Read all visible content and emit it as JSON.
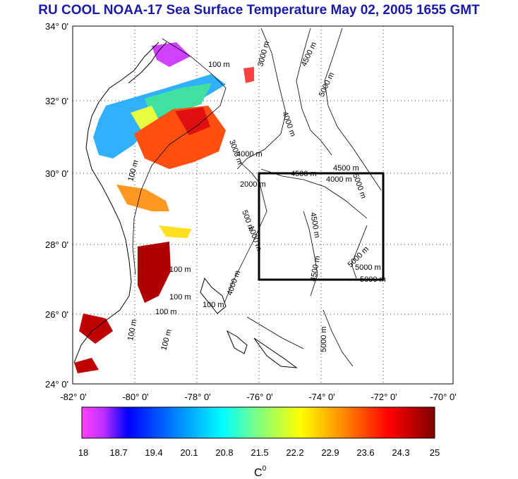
{
  "title": "RU COOL  NOAA-17 Sea Surface Temperature May 02, 2005 1655 GMT",
  "map": {
    "lat_labels": [
      "34° 0'",
      "32° 0'",
      "30° 0'",
      "28° 0'",
      "26° 0'",
      "24° 0'"
    ],
    "lon_labels": [
      "-82° 0'",
      "-80° 0'",
      "-78° 0'",
      "-76° 0'",
      "-74° 0'",
      "-72° 0'",
      "-70° 0'"
    ],
    "lat_range": [
      24,
      34
    ],
    "lon_range": [
      -82,
      -70
    ],
    "study_box": {
      "lon": [
        -76,
        -72
      ],
      "lat": [
        27,
        30
      ]
    },
    "contour_labels": {
      "c3000a": "3000 m",
      "c4500a": "4500 m",
      "c5000a": "5000 m",
      "c100a": "100 m",
      "c4000a": "4000 m",
      "c3000b": "3000 m",
      "c4000b": "4000 m",
      "c4500b": "4500 m",
      "c4500c": "4500 m",
      "c100b": "100 m",
      "c4000c": "4000 m",
      "c5000b": "5000 m",
      "c2000": "2000 m",
      "c4500d": "4500 m",
      "c4500e": "4500 m",
      "c5000c": "5000 m",
      "c5000d": "5000 m",
      "c100c": "100 m",
      "c100d": "100 m",
      "c100e": "100 m",
      "c100f": "100 m",
      "c100g": "100 m",
      "c100h": "100 m",
      "c5000e": "5000 m",
      "c5000f": "5000 m",
      "c500": "500 m",
      "c1000": "1000 m",
      "c4000d": "4000 m"
    }
  },
  "colorbar": {
    "tick_labels": [
      "18",
      "18.7",
      "19.4",
      "20.1",
      "20.8",
      "21.5",
      "22.2",
      "22.9",
      "23.6",
      "24.3",
      "25"
    ],
    "unit": "C",
    "unit_superscript": "0",
    "range": [
      18,
      25
    ]
  }
}
